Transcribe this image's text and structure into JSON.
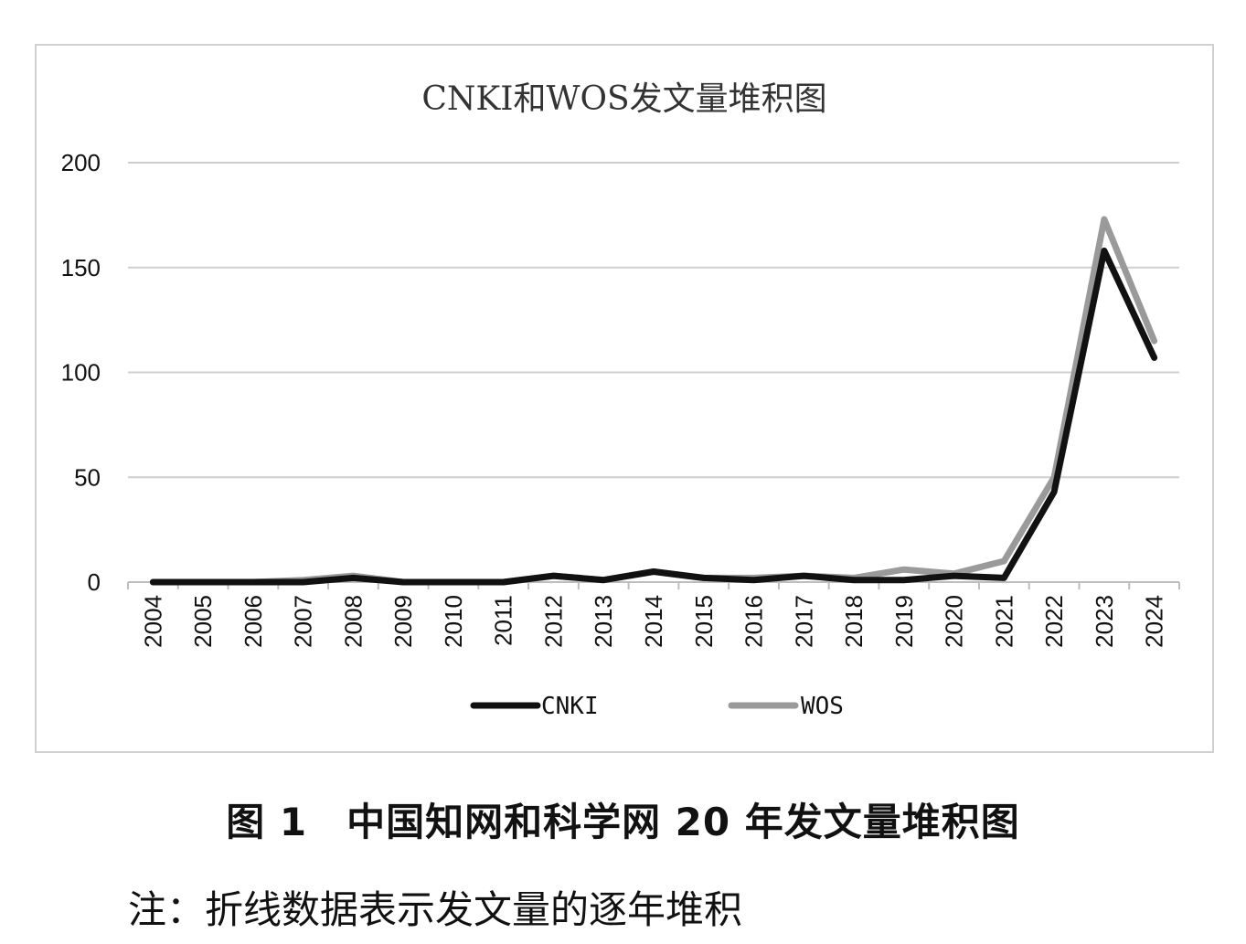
{
  "caption": "图 1　中国知网和科学网 20 年发文量堆积图",
  "note": "注：折线数据表示发文量的逐年堆积",
  "chart_data": {
    "type": "line",
    "title": "CNKI和WOS发文量堆积图",
    "xlabel": "",
    "ylabel": "",
    "categories": [
      "2004",
      "2005",
      "2006",
      "2007",
      "2008",
      "2009",
      "2010",
      "2011",
      "2012",
      "2013",
      "2014",
      "2015",
      "2016",
      "2017",
      "2018",
      "2019",
      "2020",
      "2021",
      "2022",
      "2023",
      "2024"
    ],
    "ylim": [
      0,
      200
    ],
    "yticks": [
      0,
      50,
      100,
      150,
      200
    ],
    "grid": true,
    "legend": "bottom",
    "series": [
      {
        "name": "CNKI",
        "color": "#111111",
        "values": [
          0,
          0,
          0,
          0,
          2,
          0,
          0,
          0,
          3,
          1,
          5,
          2,
          1,
          3,
          1,
          1,
          3,
          2,
          43,
          158,
          107
        ]
      },
      {
        "name": "WOS",
        "color": "#9a9a9a",
        "values": [
          0,
          0,
          0,
          1,
          3,
          0,
          0,
          0,
          3,
          1,
          5,
          2,
          2,
          3,
          2,
          6,
          4,
          10,
          50,
          173,
          115
        ]
      }
    ]
  }
}
